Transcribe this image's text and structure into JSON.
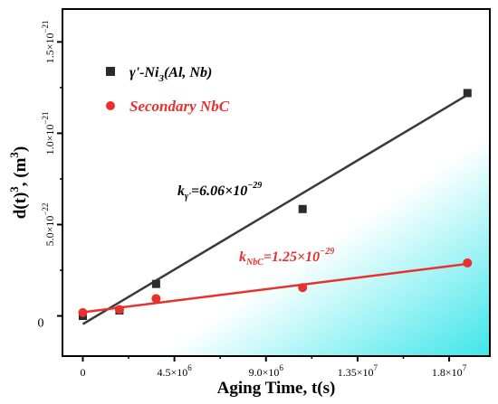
{
  "chart_data": {
    "type": "scatter",
    "xlabel": "Aging Time, t(s)",
    "ylabel_main": "d(t)",
    "ylabel_sup": "3",
    "ylabel_unit": ", (m",
    "ylabel_unit_sup": "3",
    "ylabel_close": ")",
    "xlim": [
      -1000000,
      20000000
    ],
    "ylim": [
      -2.2e-22,
      1.68e-21
    ],
    "x_ticks": [
      {
        "value": 0,
        "base": "0",
        "exp": ""
      },
      {
        "value": 4500000,
        "base": "4.5×10",
        "exp": "6"
      },
      {
        "value": 9000000,
        "base": "9.0×10",
        "exp": "6"
      },
      {
        "value": 13500000,
        "base": "1.35×10",
        "exp": "7"
      },
      {
        "value": 18000000,
        "base": "1.8×10",
        "exp": "7"
      }
    ],
    "y_ticks": [
      {
        "value": 0,
        "base": "0",
        "exp": ""
      },
      {
        "value": 5e-22,
        "base": "5.0×10",
        "exp": "−22"
      },
      {
        "value": 1e-21,
        "base": "1.0×10",
        "exp": "−21"
      },
      {
        "value": 1.5e-21,
        "base": "1.5×10",
        "exp": "−21"
      }
    ],
    "series": [
      {
        "name": "γ'-Ni3(Al, Nb)",
        "name_parts": [
          "γ'-Ni",
          "3",
          "(Al, Nb)"
        ],
        "marker": "square",
        "color": "#2b2b2b",
        "points": [
          {
            "x": 0,
            "y": 0.0
          },
          {
            "x": 1800000,
            "y": 3e-23
          },
          {
            "x": 3600000,
            "y": 1.75e-22
          },
          {
            "x": 10800000,
            "y": 5.85e-22
          },
          {
            "x": 18900000,
            "y": 1.22e-21
          }
        ],
        "fit": {
          "x": [
            0,
            18900000
          ],
          "y": [
            -4.5e-23,
            1.21e-21
          ],
          "color": "#3a3a3a"
        },
        "annotation": {
          "k": "k",
          "sub": "γ'",
          "text": "=6.06×10",
          "exp": "−29"
        }
      },
      {
        "name": "Secondary NbC",
        "marker": "circle",
        "color": "#e8312f",
        "points": [
          {
            "x": 0,
            "y": 1.8e-23
          },
          {
            "x": 1800000,
            "y": 3.5e-23
          },
          {
            "x": 3600000,
            "y": 9.5e-23
          },
          {
            "x": 10800000,
            "y": 1.55e-22
          },
          {
            "x": 18900000,
            "y": 2.9e-22
          }
        ],
        "fit": {
          "x": [
            0,
            18900000
          ],
          "y": [
            2e-23,
            2.85e-22
          ],
          "color": "#e8312f"
        },
        "annotation": {
          "k": "k",
          "sub": "NbC",
          "text": "=1.25×10",
          "exp": "−29"
        }
      }
    ],
    "legend_position": "top-left",
    "grid": false,
    "background": {
      "gradient_from": "#ffffff",
      "gradient_to": "#3ee6ea"
    }
  }
}
